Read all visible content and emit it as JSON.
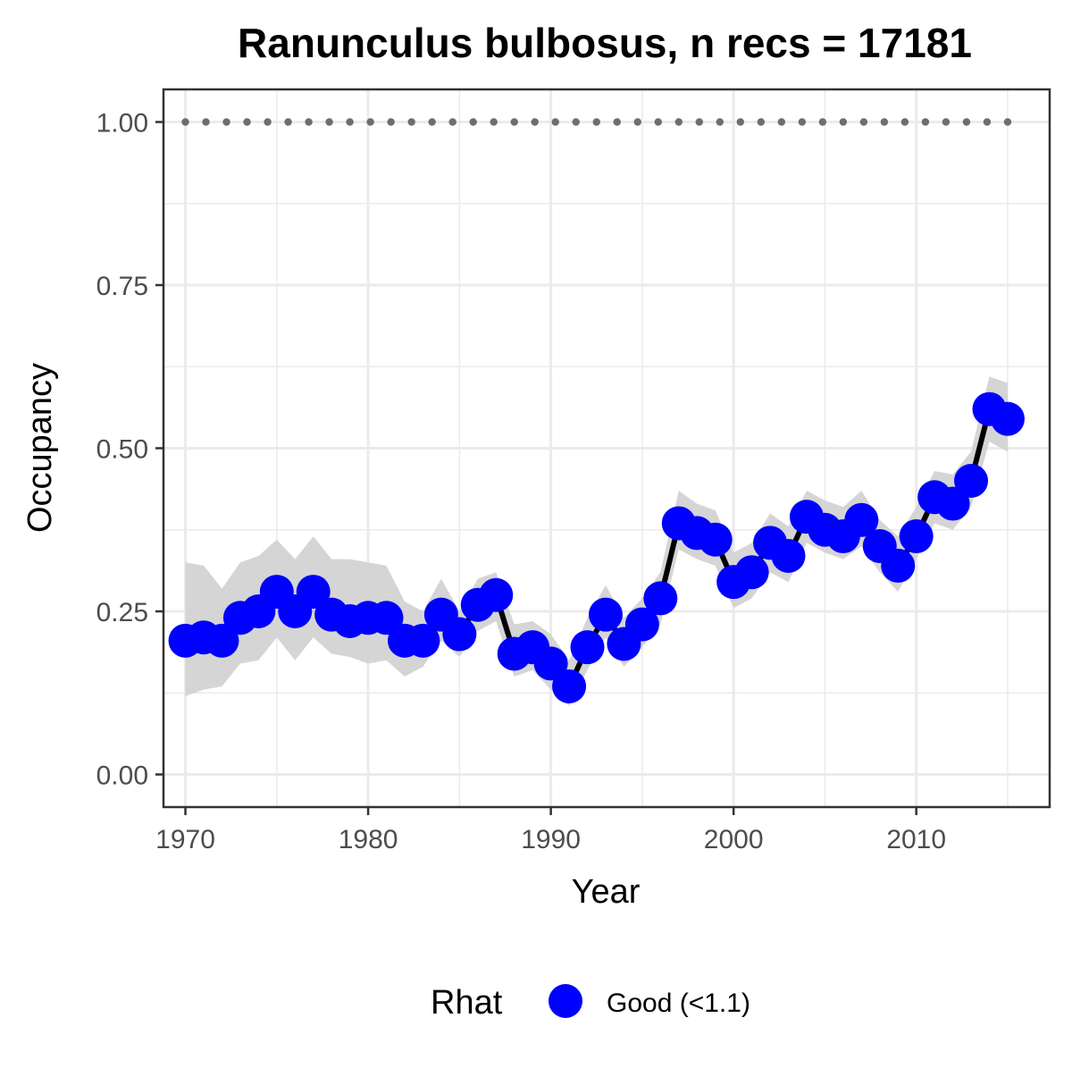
{
  "chart_data": {
    "type": "line",
    "title": "Ranunculus bulbosus, n recs = 17181",
    "xlabel": "Year",
    "ylabel": "Occupancy",
    "xlim": [
      1968.8,
      2017.3
    ],
    "ylim": [
      -0.05,
      1.05
    ],
    "x_ticks": [
      1970,
      1980,
      1990,
      2000,
      2010
    ],
    "x_tick_labels": [
      "1970",
      "1980",
      "1990",
      "2000",
      "2010"
    ],
    "y_ticks": [
      0.0,
      0.25,
      0.5,
      0.75,
      1.0
    ],
    "y_tick_labels": [
      "0.00",
      "0.25",
      "0.50",
      "0.75",
      "1.00"
    ],
    "grid": true,
    "legend": {
      "title": "Rhat",
      "placement": "bottom",
      "entries": [
        {
          "label": "Good (<1.1)",
          "color": "#0000ff"
        }
      ]
    },
    "colors": {
      "points": "#0000ff",
      "line": "#000000",
      "ribbon": "#d3d3d3",
      "reference": "#6e6e6e"
    },
    "reference_line": {
      "y": 1.0,
      "style": "dotted"
    },
    "series": [
      {
        "x": [
          1970,
          1971,
          1972,
          1973,
          1974,
          1975,
          1976,
          1977,
          1978,
          1979,
          1980,
          1981,
          1982,
          1983,
          1984,
          1985,
          1986,
          1987,
          1988,
          1989,
          1990,
          1991,
          1992,
          1993,
          1994,
          1995,
          1996,
          1997,
          1998,
          1999,
          2000,
          2001,
          2002,
          2003,
          2004,
          2005,
          2006,
          2007,
          2008,
          2009,
          2010,
          2011,
          2012,
          2013,
          2014,
          2015
        ],
        "y": [
          0.205,
          0.21,
          0.205,
          0.24,
          0.25,
          0.28,
          0.25,
          0.28,
          0.245,
          0.235,
          0.24,
          0.24,
          0.205,
          0.205,
          0.245,
          0.215,
          0.26,
          0.275,
          0.185,
          0.195,
          0.17,
          0.135,
          0.195,
          0.245,
          0.2,
          0.23,
          0.27,
          0.385,
          0.37,
          0.36,
          0.295,
          0.31,
          0.355,
          0.335,
          0.395,
          0.375,
          0.365,
          0.39,
          0.35,
          0.32,
          0.365,
          0.425,
          0.415,
          0.45,
          0.56,
          0.545
        ],
        "lower": [
          0.12,
          0.13,
          0.135,
          0.17,
          0.175,
          0.21,
          0.175,
          0.21,
          0.185,
          0.18,
          0.17,
          0.175,
          0.15,
          0.165,
          0.205,
          0.18,
          0.22,
          0.235,
          0.15,
          0.16,
          0.13,
          0.105,
          0.16,
          0.21,
          0.165,
          0.195,
          0.23,
          0.345,
          0.33,
          0.32,
          0.255,
          0.27,
          0.31,
          0.295,
          0.355,
          0.34,
          0.33,
          0.35,
          0.31,
          0.28,
          0.33,
          0.385,
          0.375,
          0.41,
          0.51,
          0.495
        ],
        "upper": [
          0.325,
          0.32,
          0.285,
          0.325,
          0.335,
          0.36,
          0.33,
          0.365,
          0.33,
          0.33,
          0.325,
          0.32,
          0.265,
          0.25,
          0.3,
          0.25,
          0.3,
          0.31,
          0.23,
          0.235,
          0.215,
          0.175,
          0.24,
          0.29,
          0.24,
          0.27,
          0.31,
          0.435,
          0.415,
          0.405,
          0.34,
          0.355,
          0.4,
          0.38,
          0.435,
          0.42,
          0.41,
          0.435,
          0.39,
          0.365,
          0.41,
          0.465,
          0.46,
          0.495,
          0.61,
          0.6
        ]
      }
    ]
  }
}
